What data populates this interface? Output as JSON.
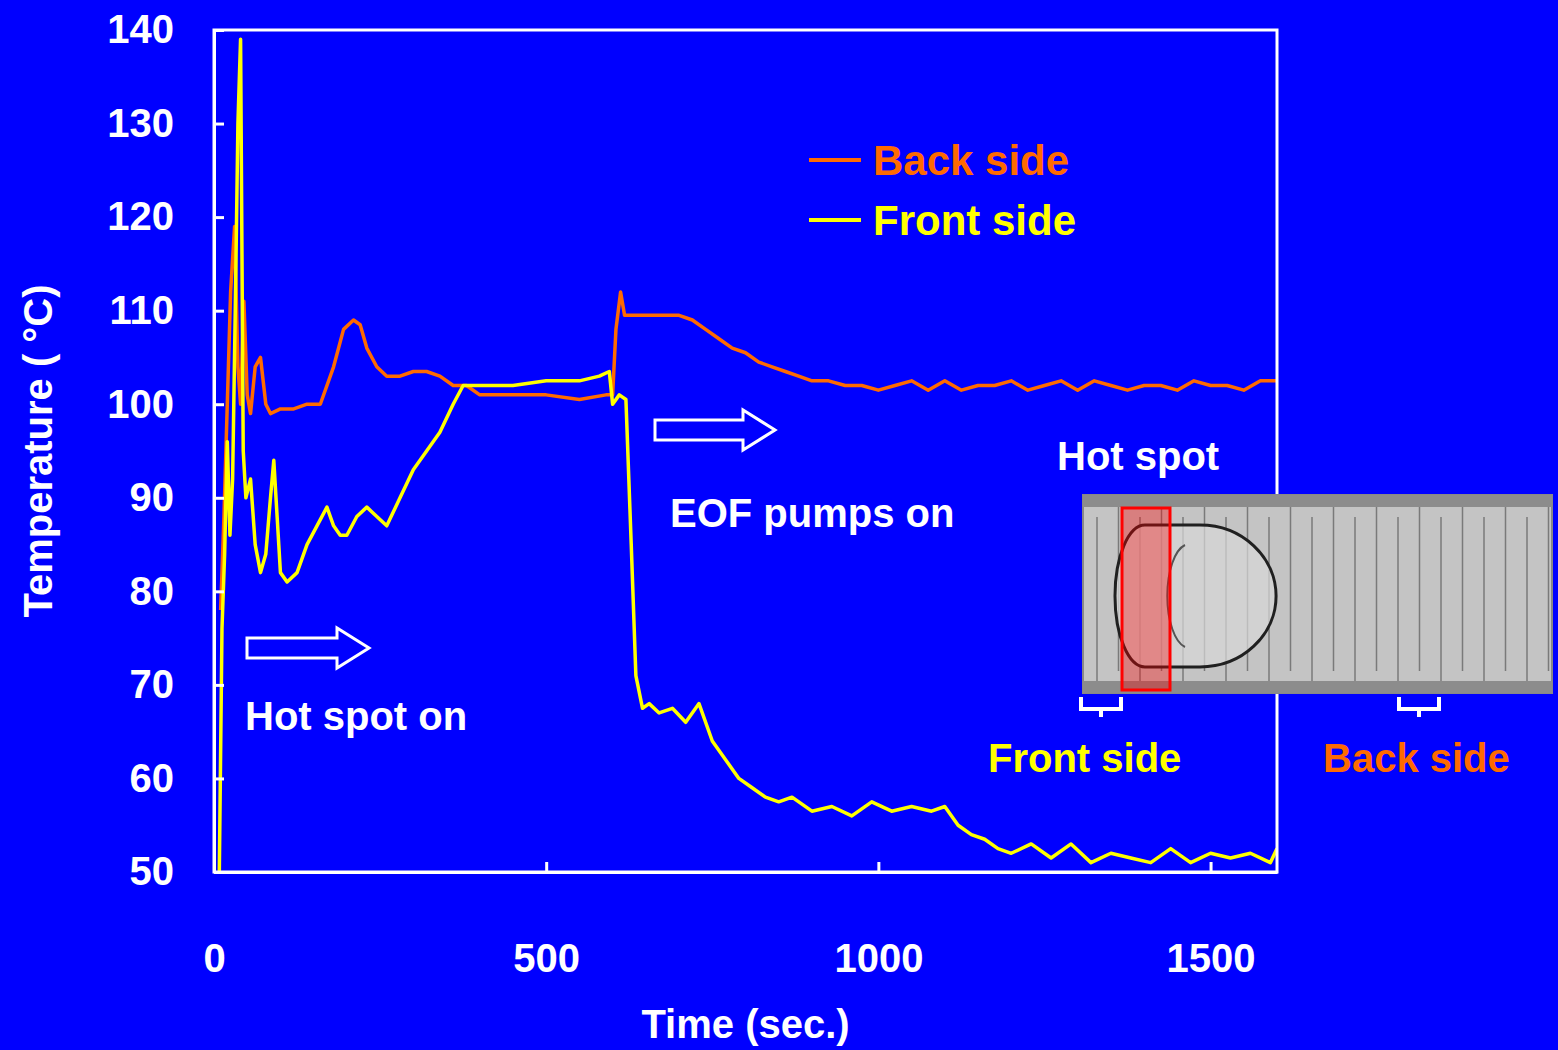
{
  "chart_data": {
    "type": "line",
    "x_label": "Time (sec.)",
    "y_label": "Temperature ( °C)",
    "xlim": [
      0,
      1600
    ],
    "xticks": [
      0,
      500,
      1000,
      1500
    ],
    "ylim": [
      50,
      140
    ],
    "yticks": [
      50,
      60,
      70,
      80,
      90,
      100,
      110,
      120,
      130,
      140
    ],
    "grid": false,
    "legend": "upper right",
    "series": [
      {
        "name": "Back side",
        "color": "#ff6a00",
        "x": [
          10,
          15,
          20,
          25,
          31,
          36,
          40,
          45,
          50,
          55,
          62,
          70,
          78,
          85,
          100,
          120,
          140,
          160,
          180,
          195,
          210,
          220,
          230,
          245,
          260,
          280,
          300,
          320,
          340,
          360,
          380,
          400,
          450,
          500,
          550,
          590,
          600,
          605,
          612,
          618,
          625,
          650,
          700,
          720,
          740,
          760,
          780,
          800,
          820,
          840,
          860,
          880,
          900,
          925,
          950,
          975,
          1000,
          1025,
          1050,
          1075,
          1100,
          1125,
          1150,
          1175,
          1200,
          1225,
          1250,
          1275,
          1300,
          1325,
          1350,
          1375,
          1400,
          1425,
          1450,
          1475,
          1500,
          1525,
          1550,
          1575,
          1600
        ],
        "values": [
          78,
          88,
          100,
          112,
          119,
          104,
          100,
          111,
          101,
          99,
          104,
          105,
          100,
          99,
          99.5,
          99.5,
          100,
          100,
          104,
          108,
          109,
          108.5,
          106,
          104,
          103,
          103,
          103.5,
          103.5,
          103,
          102,
          102,
          101,
          101,
          101,
          100.5,
          101,
          101,
          108,
          112,
          109.5,
          109.5,
          109.5,
          109.5,
          109,
          108,
          107,
          106,
          105.5,
          104.5,
          104,
          103.5,
          103,
          102.5,
          102.5,
          102,
          102,
          101.5,
          102,
          102.5,
          101.5,
          102.5,
          101.5,
          102,
          102,
          102.5,
          101.5,
          102,
          102.5,
          101.5,
          102.5,
          102,
          101.5,
          102,
          102,
          101.5,
          102.5,
          102,
          102,
          101.5,
          102.5,
          102.5
        ]
      },
      {
        "name": "Front side",
        "color": "#ffff00",
        "x": [
          8,
          12,
          16,
          20,
          24,
          28,
          32,
          36,
          40,
          44,
          48,
          55,
          62,
          70,
          78,
          85,
          90,
          95,
          100,
          110,
          125,
          140,
          155,
          170,
          180,
          190,
          200,
          215,
          230,
          245,
          260,
          280,
          300,
          320,
          340,
          360,
          375,
          400,
          450,
          500,
          550,
          580,
          595,
          600,
          610,
          620,
          628,
          635,
          645,
          655,
          670,
          690,
          710,
          730,
          750,
          770,
          790,
          810,
          830,
          850,
          870,
          900,
          930,
          960,
          990,
          1020,
          1050,
          1080,
          1100,
          1120,
          1140,
          1160,
          1180,
          1200,
          1230,
          1260,
          1290,
          1320,
          1350,
          1380,
          1410,
          1440,
          1470,
          1500,
          1530,
          1560,
          1590,
          1600
        ],
        "values": [
          50,
          76,
          84,
          96,
          86,
          92,
          110,
          130,
          139,
          95,
          90,
          92,
          85,
          82,
          84,
          90,
          94,
          88,
          82,
          81,
          82,
          85,
          87,
          89,
          87,
          86,
          86,
          88,
          89,
          88,
          87,
          90,
          93,
          95,
          97,
          100,
          102,
          102,
          102,
          102.5,
          102.5,
          103,
          103.5,
          100,
          101,
          100.5,
          85,
          71,
          67.5,
          68,
          67,
          67.5,
          66,
          68,
          64,
          62,
          60,
          59,
          58,
          57.5,
          58,
          56.5,
          57,
          56,
          57.5,
          56.5,
          57,
          56.5,
          57,
          55,
          54,
          53.5,
          52.5,
          52,
          53,
          51.5,
          53,
          51,
          52,
          51.5,
          51,
          52.5,
          51,
          52,
          51.5,
          52,
          51,
          52.5
        ]
      }
    ],
    "annotations": [
      {
        "text": "Hot spot on"
      },
      {
        "text": "EOF pumps on"
      },
      {
        "text": "Hot spot"
      },
      {
        "text": "Front side",
        "color": "#ffff00"
      },
      {
        "text": "Back side",
        "color": "#ff6a00"
      }
    ]
  }
}
